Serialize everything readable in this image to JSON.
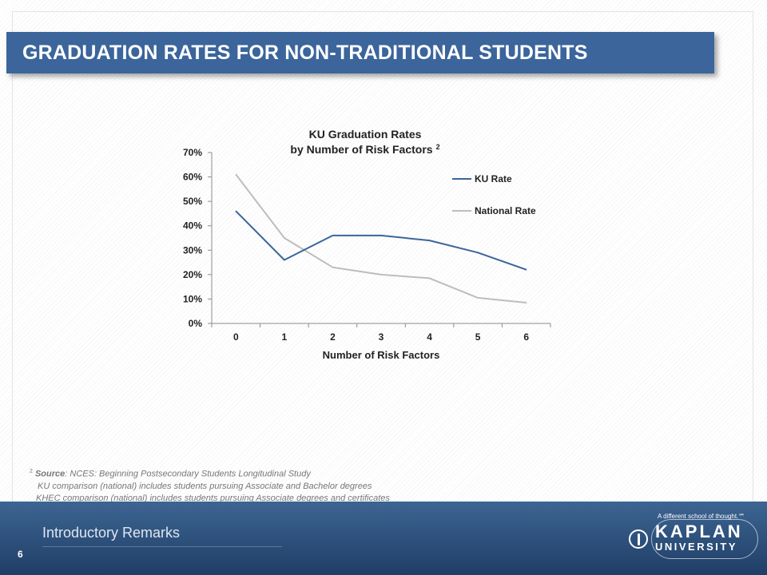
{
  "slide": {
    "title": "GRADUATION RATES FOR NON-TRADITIONAL STUDENTS",
    "footnote": {
      "marker": "2",
      "source_label": "Source",
      "source_text": ":  NCES: Beginning Postsecondary Students Longitudinal Study",
      "line2": "KU comparison (national) includes students  pursuing Associate and Bachelor  degrees",
      "line3": "KHEC comparison (national) includes students pursuing Associate degrees and certificates"
    },
    "footer": {
      "section": "Introductory Remarks",
      "page_number": "6",
      "tagline": "A different school of thought.℠",
      "logo_line1": "KAPLAN",
      "logo_line2": "UNIVERSITY"
    }
  },
  "colors": {
    "title_bar": "#3b659b",
    "ku_rate": "#3b659b",
    "national_rate": "#bdbdbd"
  },
  "chart_data": {
    "type": "line",
    "title": "KU Graduation Rates",
    "subtitle": "by Number of Risk Factors",
    "title_superscript": "2",
    "xlabel": "Number of Risk Factors",
    "ylabel": "",
    "categories": [
      "0",
      "1",
      "2",
      "3",
      "4",
      "5",
      "6"
    ],
    "ylim": [
      0,
      0.7
    ],
    "y_ticks": [
      "0%",
      "10%",
      "20%",
      "30%",
      "40%",
      "50%",
      "60%",
      "70%"
    ],
    "legend_position": "right",
    "grid": false,
    "series": [
      {
        "name": "KU Rate",
        "color": "#3b659b",
        "values": [
          0.46,
          0.26,
          0.36,
          0.36,
          0.34,
          0.29,
          0.22
        ]
      },
      {
        "name": "National Rate",
        "color": "#bdbdbd",
        "values": [
          0.61,
          0.35,
          0.23,
          0.2,
          0.185,
          0.105,
          0.085
        ]
      }
    ]
  }
}
